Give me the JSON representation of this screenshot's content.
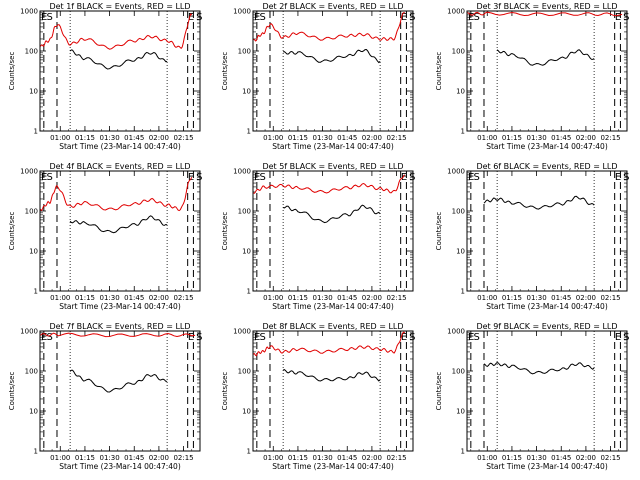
{
  "figure": {
    "title_suffix": "BLACK = Events, RED = LLD",
    "xlabel": "Start Time (23-Mar-14 00:47:40)",
    "ylabel": "Counts/sec",
    "x_ticks": [
      "01:00",
      "01:15",
      "01:30",
      "01:45",
      "02:00",
      "02:15"
    ],
    "y_ticks": [
      "1",
      "10",
      "100",
      "1000"
    ],
    "colors": {
      "events": "#000000",
      "lld": "#e00000",
      "axes": "#000000",
      "background": "#ffffff"
    }
  },
  "chart_data": [
    {
      "type": "line",
      "title": "Det 1f BLACK = Events, RED = LLD",
      "log_y": true,
      "xlim": [
        "00:47:40",
        "02:25:00"
      ],
      "ylim": [
        1,
        1000
      ],
      "markers": {
        "E_left": "00:47:40",
        "S_left": "00:51:00",
        "E_right": "02:17:00",
        "S_right": "02:22:00"
      },
      "vlines_dashed": [
        "00:50:00",
        "00:58:00",
        "02:17:30",
        "02:21:00"
      ],
      "vlines_dotted": [
        "01:06:00",
        "02:05:00"
      ],
      "series": [
        {
          "name": "Events",
          "x": [
            "01:06",
            "01:15",
            "01:30",
            "01:45",
            "01:55",
            "02:05"
          ],
          "values": [
            100,
            65,
            38,
            60,
            90,
            55
          ]
        },
        {
          "name": "LLD",
          "x": [
            "00:48",
            "00:53",
            "00:58",
            "01:06",
            "01:15",
            "01:30",
            "01:45",
            "01:55",
            "02:05",
            "02:13",
            "02:20"
          ],
          "values": [
            130,
            180,
            450,
            150,
            200,
            120,
            180,
            230,
            180,
            120,
            800
          ]
        }
      ]
    },
    {
      "type": "line",
      "title": "Det 2f BLACK = Events, RED = LLD",
      "log_y": true,
      "xlim": [
        "00:47:40",
        "02:25:00"
      ],
      "ylim": [
        1,
        1000
      ],
      "markers": {
        "E_left": "00:47:40",
        "S_left": "00:51:00",
        "E_right": "02:17:00",
        "S_right": "02:22:00"
      },
      "vlines_dashed": [
        "00:50:00",
        "00:58:00",
        "02:17:30",
        "02:21:00"
      ],
      "vlines_dotted": [
        "01:06:00",
        "02:05:00"
      ],
      "series": [
        {
          "name": "Events",
          "x": [
            "01:06",
            "01:15",
            "01:30",
            "01:45",
            "01:55",
            "02:05"
          ],
          "values": [
            90,
            90,
            55,
            75,
            105,
            55
          ]
        },
        {
          "name": "LLD",
          "x": [
            "00:48",
            "00:53",
            "00:58",
            "01:06",
            "01:15",
            "01:30",
            "01:45",
            "01:55",
            "02:05",
            "02:13",
            "02:20"
          ],
          "values": [
            180,
            260,
            450,
            220,
            280,
            200,
            240,
            260,
            200,
            200,
            900
          ]
        }
      ]
    },
    {
      "type": "line",
      "title": "Det 3f BLACK = Events, RED = LLD",
      "log_y": true,
      "xlim": [
        "00:47:40",
        "02:25:00"
      ],
      "ylim": [
        1,
        1000
      ],
      "markers": {
        "E_left": "00:47:40",
        "S_left": "00:51:00",
        "E_right": "02:17:00",
        "S_right": "02:22:00"
      },
      "vlines_dashed": [
        "00:50:00",
        "00:58:00",
        "02:17:30",
        "02:21:00"
      ],
      "vlines_dotted": [
        "01:06:00",
        "02:05:00"
      ],
      "series": [
        {
          "name": "Events",
          "x": [
            "01:06",
            "01:15",
            "01:30",
            "01:45",
            "01:55",
            "02:05"
          ],
          "values": [
            100,
            80,
            45,
            65,
            100,
            65
          ]
        },
        {
          "name": "LLD",
          "x": [
            "00:48",
            "01:00",
            "01:30",
            "02:00",
            "02:22"
          ],
          "values": [
            850,
            860,
            830,
            840,
            820
          ]
        }
      ]
    },
    {
      "type": "line",
      "title": "Det 4f BLACK = Events, RED = LLD",
      "log_y": true,
      "xlim": [
        "00:47:40",
        "02:25:00"
      ],
      "ylim": [
        1,
        1000
      ],
      "markers": {
        "E_left": "00:47:40",
        "S_left": "00:51:00",
        "E_right": "02:17:00",
        "S_right": "02:22:00"
      },
      "vlines_dashed": [
        "00:50:00",
        "00:58:00",
        "02:17:30",
        "02:21:00"
      ],
      "vlines_dotted": [
        "01:06:00",
        "02:05:00"
      ],
      "series": [
        {
          "name": "Events",
          "x": [
            "01:06",
            "01:15",
            "01:30",
            "01:45",
            "01:55",
            "02:05"
          ],
          "values": [
            55,
            50,
            30,
            45,
            70,
            45
          ]
        },
        {
          "name": "LLD",
          "x": [
            "00:48",
            "00:53",
            "00:58",
            "01:06",
            "01:15",
            "01:30",
            "01:45",
            "01:55",
            "02:05",
            "02:13",
            "02:20"
          ],
          "values": [
            110,
            160,
            400,
            130,
            160,
            110,
            150,
            190,
            140,
            110,
            700
          ]
        }
      ]
    },
    {
      "type": "line",
      "title": "Det 5f BLACK = Events, RED = LLD",
      "log_y": true,
      "xlim": [
        "00:47:40",
        "02:25:00"
      ],
      "ylim": [
        1,
        1000
      ],
      "markers": {
        "E_left": "00:47:40",
        "S_left": "00:51:00",
        "E_right": "02:17:00",
        "S_right": "02:22:00"
      },
      "vlines_dashed": [
        "00:50:00",
        "00:58:00",
        "02:17:30",
        "02:21:00"
      ],
      "vlines_dotted": [
        "01:06:00",
        "02:05:00"
      ],
      "series": [
        {
          "name": "Events",
          "x": [
            "01:06",
            "01:15",
            "01:30",
            "01:45",
            "01:55",
            "02:05"
          ],
          "values": [
            130,
            100,
            55,
            80,
            130,
            85
          ]
        },
        {
          "name": "LLD",
          "x": [
            "00:48",
            "00:55",
            "01:06",
            "01:15",
            "01:30",
            "01:45",
            "01:55",
            "02:05",
            "02:13",
            "02:20"
          ],
          "values": [
            300,
            400,
            430,
            380,
            300,
            380,
            450,
            360,
            300,
            800
          ]
        }
      ]
    },
    {
      "type": "line",
      "title": "Det 6f BLACK = Events, RED = LLD",
      "log_y": true,
      "xlim": [
        "00:47:40",
        "02:25:00"
      ],
      "ylim": [
        1,
        1000
      ],
      "markers": {
        "E_left": "00:47:40",
        "S_left": "00:51:00",
        "E_right": "02:17:00",
        "S_right": "02:22:00"
      },
      "vlines_dashed": [
        "00:50:00",
        "00:58:00",
        "02:17:30",
        "02:21:00"
      ],
      "vlines_dotted": [
        "01:06:00",
        "02:05:00"
      ],
      "series": [
        {
          "name": "Events",
          "x": [
            "00:58",
            "01:06",
            "01:15",
            "01:30",
            "01:45",
            "01:55",
            "02:05"
          ],
          "values": [
            170,
            200,
            160,
            120,
            150,
            220,
            140
          ]
        }
      ]
    },
    {
      "type": "line",
      "title": "Det 7f BLACK = Events, RED = LLD",
      "log_y": true,
      "xlim": [
        "00:47:40",
        "02:25:00"
      ],
      "ylim": [
        1,
        1000
      ],
      "markers": {
        "E_left": "00:47:40",
        "S_left": "00:51:00",
        "E_right": "02:17:00",
        "S_right": "02:22:00"
      },
      "vlines_dashed": [
        "00:50:00",
        "00:58:00",
        "02:17:30",
        "02:21:00"
      ],
      "vlines_dotted": [
        "01:06:00",
        "02:05:00"
      ],
      "series": [
        {
          "name": "Events",
          "x": [
            "01:06",
            "01:15",
            "01:30",
            "01:45",
            "01:55",
            "02:05"
          ],
          "values": [
            100,
            60,
            32,
            50,
            80,
            55
          ]
        },
        {
          "name": "LLD",
          "x": [
            "00:48",
            "01:00",
            "01:30",
            "02:00",
            "02:22"
          ],
          "values": [
            800,
            820,
            780,
            800,
            780
          ]
        }
      ]
    },
    {
      "type": "line",
      "title": "Det 8f BLACK = Events, RED = LLD",
      "log_y": true,
      "xlim": [
        "00:47:40",
        "02:25:00"
      ],
      "ylim": [
        1,
        1000
      ],
      "markers": {
        "E_left": "00:47:40",
        "S_left": "00:51:00",
        "E_right": "02:17:00",
        "S_right": "02:22:00"
      },
      "vlines_dashed": [
        "00:50:00",
        "00:58:00",
        "02:17:30",
        "02:21:00"
      ],
      "vlines_dotted": [
        "01:06:00",
        "02:05:00"
      ],
      "series": [
        {
          "name": "Events",
          "x": [
            "01:06",
            "01:15",
            "01:30",
            "01:45",
            "01:55",
            "02:05"
          ],
          "values": [
            100,
            90,
            60,
            65,
            90,
            60
          ]
        },
        {
          "name": "LLD",
          "x": [
            "00:48",
            "00:53",
            "00:58",
            "01:06",
            "01:15",
            "01:30",
            "01:45",
            "01:55",
            "02:05",
            "02:13",
            "02:20"
          ],
          "values": [
            250,
            300,
            400,
            300,
            350,
            300,
            350,
            400,
            350,
            300,
            900
          ]
        }
      ]
    },
    {
      "type": "line",
      "title": "Det 9f BLACK = Events, RED = LLD",
      "log_y": true,
      "xlim": [
        "00:47:40",
        "02:25:00"
      ],
      "ylim": [
        1,
        1000
      ],
      "markers": {
        "E_left": "00:47:40",
        "S_left": "00:51:00",
        "E_right": "02:17:00",
        "S_right": "02:22:00"
      },
      "vlines_dashed": [
        "00:50:00",
        "00:58:00",
        "02:17:30",
        "02:21:00"
      ],
      "vlines_dotted": [
        "01:06:00",
        "02:05:00"
      ],
      "series": [
        {
          "name": "Events",
          "x": [
            "00:58",
            "01:06",
            "01:15",
            "01:30",
            "01:45",
            "01:55",
            "02:05"
          ],
          "values": [
            140,
            150,
            130,
            90,
            110,
            150,
            120
          ]
        }
      ]
    }
  ]
}
